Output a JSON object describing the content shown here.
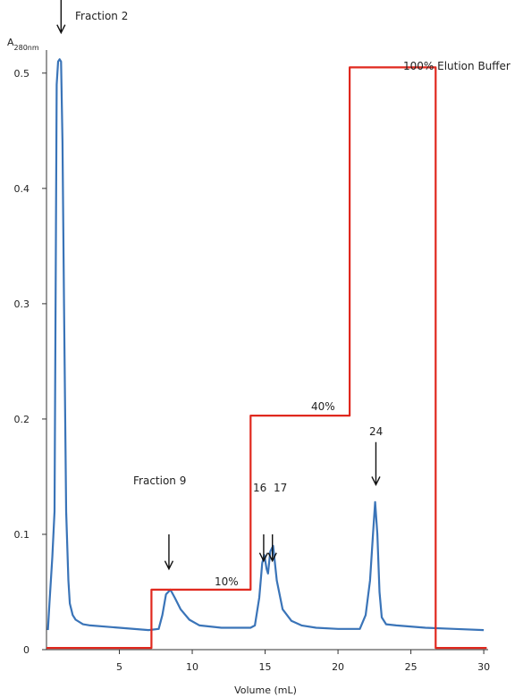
{
  "chart_data": {
    "type": "line",
    "title": "",
    "xlabel": "Volume (mL)",
    "ylabel": "A",
    "ylabel_sub": "280nm",
    "xlim": [
      0,
      30.3
    ],
    "ylim": [
      0,
      0.52
    ],
    "xticks": [
      5,
      10,
      15,
      20,
      25,
      30
    ],
    "yticks": [
      0,
      0.1,
      0.2,
      0.3,
      0.4,
      0.5
    ],
    "grid": false,
    "legend": "none",
    "series": [
      {
        "key": "absorbance",
        "color": "#3a74b8",
        "x": [
          0.1,
          0.2,
          0.4,
          0.55,
          0.7,
          0.8,
          0.9,
          1.0,
          1.1,
          1.2,
          1.35,
          1.5,
          1.6,
          1.7,
          1.8,
          2.0,
          2.5,
          3.0,
          5.0,
          7.0,
          7.7,
          7.95,
          8.2,
          8.5,
          8.8,
          9.2,
          9.8,
          10.5,
          12.0,
          14.0,
          14.3,
          14.6,
          14.8,
          14.95,
          15.1,
          15.2,
          15.35,
          15.55,
          15.8,
          16.2,
          16.8,
          17.5,
          18.5,
          20.0,
          21.5,
          21.9,
          22.2,
          22.4,
          22.55,
          22.7,
          22.85,
          23.0,
          23.3,
          24.0,
          26.0,
          28.0,
          30.0
        ],
        "y": [
          0.017,
          0.04,
          0.08,
          0.12,
          0.49,
          0.51,
          0.512,
          0.51,
          0.44,
          0.3,
          0.12,
          0.06,
          0.04,
          0.035,
          0.03,
          0.026,
          0.022,
          0.021,
          0.019,
          0.017,
          0.018,
          0.03,
          0.048,
          0.052,
          0.045,
          0.035,
          0.026,
          0.021,
          0.019,
          0.019,
          0.021,
          0.045,
          0.075,
          0.082,
          0.07,
          0.066,
          0.085,
          0.09,
          0.06,
          0.035,
          0.025,
          0.021,
          0.019,
          0.018,
          0.018,
          0.03,
          0.06,
          0.1,
          0.128,
          0.1,
          0.05,
          0.028,
          0.022,
          0.021,
          0.019,
          0.018,
          0.017
        ]
      },
      {
        "key": "elution-buffer-step",
        "color": "#e0281e",
        "x": [
          0,
          7.2,
          7.2,
          14.0,
          14.0,
          20.8,
          20.8,
          26.7,
          26.7,
          30.2
        ],
        "y": [
          0.0015,
          0.0015,
          0.052,
          0.052,
          0.203,
          0.203,
          0.505,
          0.505,
          0.0015,
          0.0015
        ]
      }
    ],
    "annotations": [
      {
        "key": "fraction-2",
        "text": "Fraction 2",
        "arrow_x": 1.0,
        "arrow_from": 0.57,
        "arrow_to": 0.535
      },
      {
        "key": "fraction-9",
        "text": "Fraction 9",
        "arrow_x": 8.4,
        "arrow_from": 0.1,
        "arrow_to": 0.07
      },
      {
        "key": "fraction-16",
        "text": "16",
        "arrow_x": 14.9,
        "arrow_from": 0.1,
        "arrow_to": 0.077
      },
      {
        "key": "fraction-17",
        "text": "17",
        "arrow_x": 15.5,
        "arrow_from": 0.1,
        "arrow_to": 0.077
      },
      {
        "key": "fraction-24",
        "text": "24",
        "arrow_x": 22.6,
        "arrow_from": 0.18,
        "arrow_to": 0.143
      },
      {
        "key": "step-10",
        "text": "10%"
      },
      {
        "key": "step-40",
        "text": "40%"
      },
      {
        "key": "step-100",
        "text": "100% Elution Buffer"
      }
    ]
  }
}
